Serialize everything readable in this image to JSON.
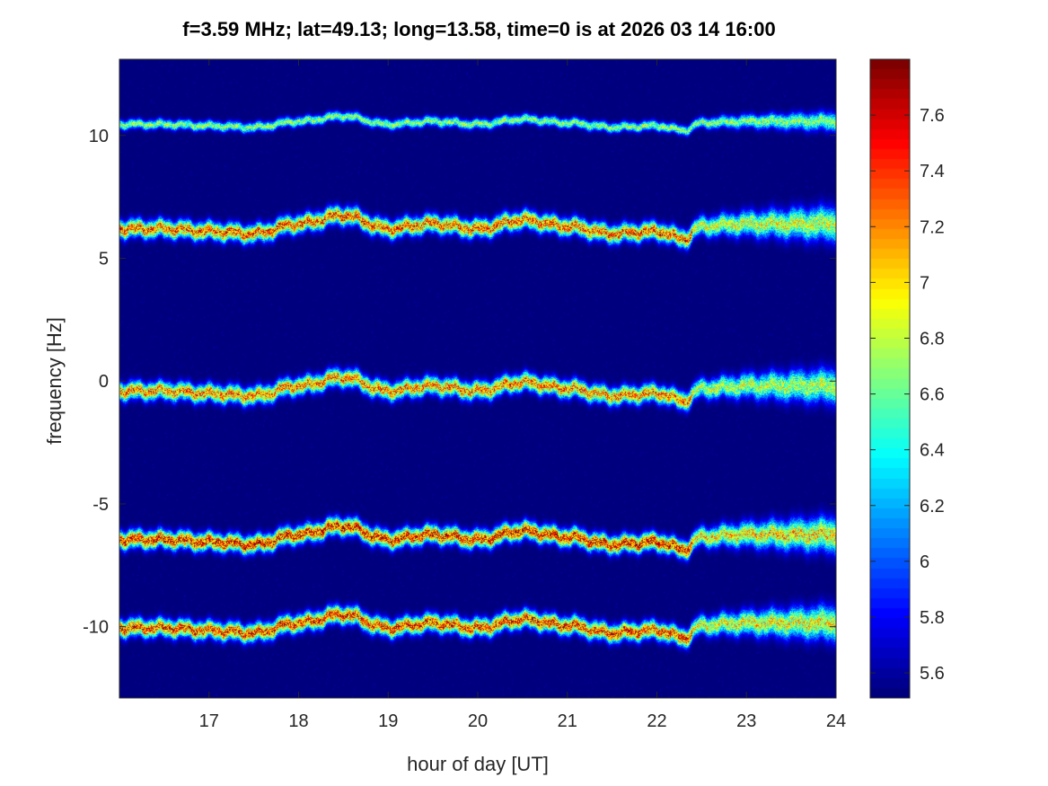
{
  "chart_data": {
    "type": "heatmap",
    "title": "f=3.59 MHz;  lat=49.13; long=13.58, time=0 is at 2026 03 14 16:00",
    "xlabel": "hour of day [UT]",
    "ylabel": "frequency [Hz]",
    "xlim": [
      16,
      24
    ],
    "ylim": [
      -12.9,
      13.1
    ],
    "xticks": [
      17,
      18,
      19,
      20,
      21,
      22,
      23,
      24
    ],
    "xtick_labels": [
      "17",
      "18",
      "19",
      "20",
      "21",
      "22",
      "23",
      "24"
    ],
    "yticks": [
      -10,
      -5,
      0,
      5,
      10
    ],
    "ytick_labels": [
      "-10",
      "-5",
      "0",
      "5",
      "10"
    ],
    "colormap": "jet",
    "clim": [
      5.51,
      7.8
    ],
    "colorbar_ticks": [
      5.6,
      5.8,
      6,
      6.2,
      6.4,
      6.6,
      6.8,
      7,
      7.2,
      7.4,
      7.6
    ],
    "colorbar_tick_labels": [
      "5.6",
      "5.8",
      "6",
      "6.2",
      "6.4",
      "6.6",
      "6.8",
      "7",
      "7.2",
      "7.4",
      "7.6"
    ],
    "background_value": 5.51,
    "trace_hours": [
      16,
      16.5,
      17,
      17.5,
      18,
      18.5,
      19,
      19.5,
      20,
      20.5,
      21,
      21.5,
      22,
      22.3,
      22.5,
      23,
      23.5,
      24
    ],
    "trace_offsets_hz": [
      0,
      0,
      -0.1,
      -0.2,
      0.2,
      0.55,
      0,
      0.2,
      0,
      0.35,
      0.1,
      -0.2,
      -0.1,
      -0.4,
      0.1,
      0.2,
      0.2,
      0.2
    ],
    "bands": [
      {
        "center_hz": 10.45,
        "peak_value": 6.9
      },
      {
        "center_hz": 6.2,
        "peak_value": 7.6
      },
      {
        "center_hz": -0.4,
        "peak_value": 7.5
      },
      {
        "center_hz": -6.45,
        "peak_value": 7.8
      },
      {
        "center_hz": -10.05,
        "peak_value": 7.7
      }
    ]
  }
}
